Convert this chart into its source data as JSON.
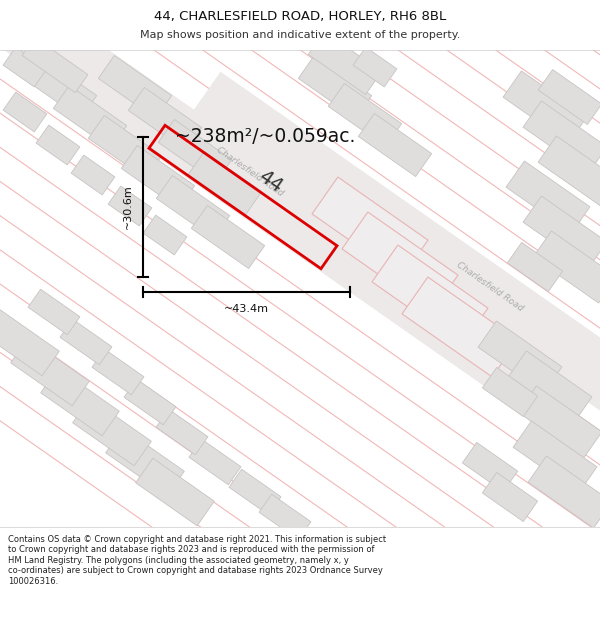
{
  "title_line1": "44, CHARLESFIELD ROAD, HORLEY, RH6 8BL",
  "title_line2": "Map shows position and indicative extent of the property.",
  "footer": "Contains OS data © Crown copyright and database right 2021. This information is subject\nto Crown copyright and database rights 2023 and is reproduced with the permission of\nHM Land Registry. The polygons (including the associated geometry, namely x, y\nco-ordinates) are subject to Crown copyright and database rights 2023 Ordnance Survey\n100026316.",
  "area_text": "~238m²/~0.059ac.",
  "plot_number": "44",
  "dim_width": "~43.4m",
  "dim_height": "~30.6m",
  "road_label": "Charlesfield Road",
  "map_bg": "#ffffff",
  "plot_color": "#dd0000",
  "building_fill": "#e0dddd",
  "building_edge": "#c8c4c4",
  "grid_line_color": "#f0b0b0",
  "road_color": "#f0ecec",
  "title_fontsize": 9.5,
  "sub_fontsize": 8.0,
  "footer_fontsize": 6.0
}
